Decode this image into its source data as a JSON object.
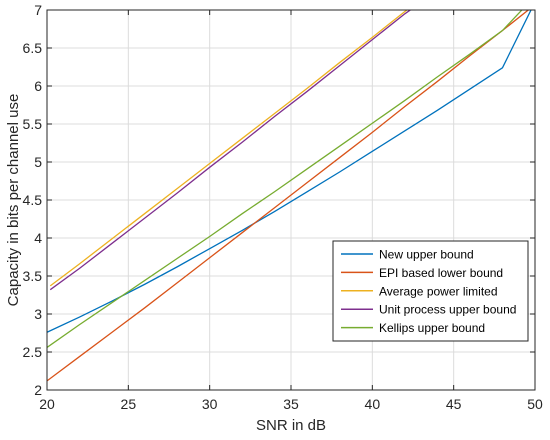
{
  "chart_data": {
    "type": "line",
    "title": "",
    "xlabel": "SNR in dB",
    "ylabel": "Capacity in bits per channel use",
    "xlim": [
      20,
      50
    ],
    "ylim": [
      2,
      7
    ],
    "xticks": [
      20,
      25,
      30,
      35,
      40,
      45,
      50
    ],
    "yticks": [
      2,
      2.5,
      3,
      3.5,
      4,
      4.5,
      5,
      5.5,
      6,
      6.5,
      7
    ],
    "ytick_labels": [
      "2",
      "2.5",
      "3",
      "3.5",
      "4",
      "4.5",
      "5",
      "5.5",
      "6",
      "6.5",
      "7"
    ],
    "grid": true,
    "legend_position": "lower-right",
    "series": [
      {
        "name": "New upper bound",
        "color": "#0072BD",
        "x": [
          20,
          22,
          24,
          26,
          28,
          30,
          32,
          34,
          36,
          38,
          40,
          42,
          44,
          46,
          48,
          49.8
        ],
        "y": [
          2.76,
          2.96,
          3.17,
          3.39,
          3.62,
          3.86,
          4.1,
          4.35,
          4.61,
          4.87,
          5.14,
          5.41,
          5.68,
          5.96,
          6.24,
          7.02
        ]
      },
      {
        "name": "EPI based lower bound",
        "color": "#D95319",
        "x": [
          20,
          22,
          24,
          26,
          28,
          30,
          32,
          34,
          36,
          38,
          40,
          42,
          44,
          46,
          48,
          50
        ],
        "y": [
          2.12,
          2.44,
          2.76,
          3.08,
          3.41,
          3.74,
          4.07,
          4.4,
          4.73,
          5.06,
          5.39,
          5.73,
          6.06,
          6.4,
          6.73,
          7.07
        ]
      },
      {
        "name": "Average power limited",
        "color": "#EDB120",
        "x": [
          20.2,
          22,
          24,
          26,
          28,
          30,
          32,
          34,
          36,
          38,
          40,
          42,
          42.7
        ],
        "y": [
          3.37,
          3.66,
          3.99,
          4.32,
          4.65,
          4.98,
          5.31,
          5.64,
          5.97,
          6.31,
          6.64,
          6.98,
          7.09
        ]
      },
      {
        "name": "Unit process upper bound",
        "color": "#7E2F8E",
        "x": [
          20.2,
          22,
          24,
          26,
          28,
          30,
          32,
          34,
          36,
          38,
          40,
          42,
          42.4
        ],
        "y": [
          3.32,
          3.6,
          3.93,
          4.26,
          4.59,
          4.93,
          5.26,
          5.6,
          5.93,
          6.27,
          6.61,
          6.95,
          7.01
        ]
      },
      {
        "name": "Kellips upper bound",
        "color": "#77AC30",
        "x": [
          20,
          22,
          24,
          26,
          28,
          30,
          32,
          34,
          36,
          38,
          40,
          42,
          44,
          46,
          48,
          49.5
        ],
        "y": [
          2.56,
          2.86,
          3.15,
          3.44,
          3.73,
          4.02,
          4.32,
          4.61,
          4.91,
          5.21,
          5.51,
          5.81,
          6.12,
          6.42,
          6.73,
          7.07
        ]
      }
    ]
  }
}
